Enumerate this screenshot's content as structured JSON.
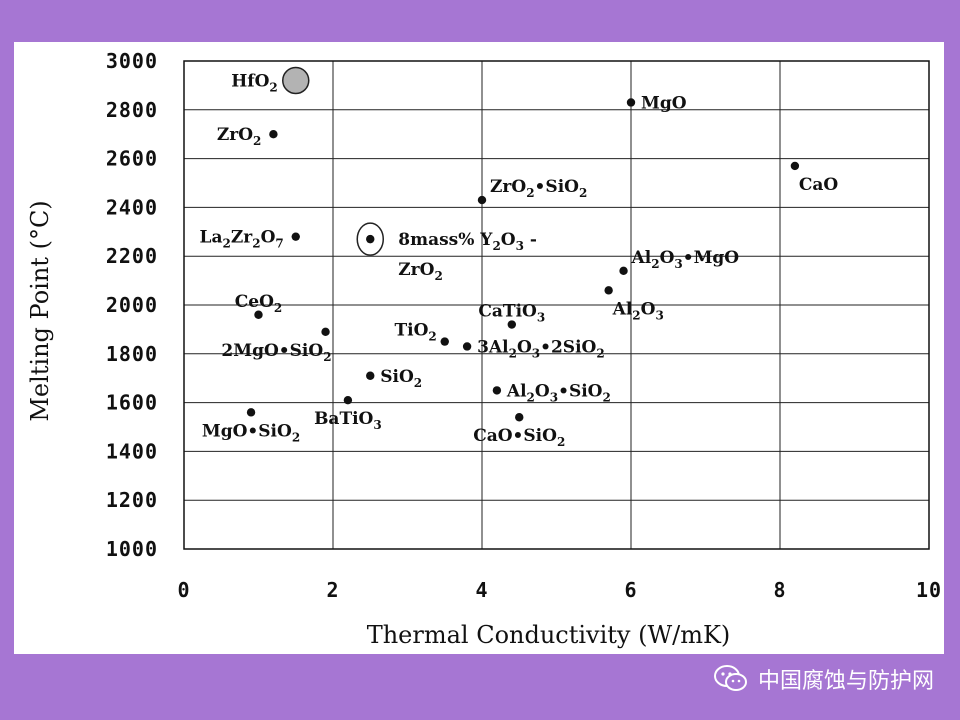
{
  "chart_data": {
    "type": "scatter",
    "xlabel": "Thermal Conductivity (W/mK)",
    "ylabel": "Melting Point (°C)",
    "xlim": [
      0,
      10
    ],
    "ylim": [
      1000,
      3000
    ],
    "xticks": [
      0,
      2,
      4,
      6,
      8,
      10
    ],
    "yticks": [
      1000,
      1200,
      1400,
      1600,
      1800,
      2000,
      2200,
      2400,
      2600,
      2800,
      3000
    ],
    "grid": true,
    "points": [
      {
        "label": [
          "HfO",
          {
            "sub": "2"
          }
        ],
        "x": 1.5,
        "y": 2920,
        "marker": "large-gray",
        "label_pos": "left"
      },
      {
        "label": [
          "ZrO",
          {
            "sub": "2"
          }
        ],
        "x": 1.2,
        "y": 2700,
        "label_pos": "left"
      },
      {
        "label": [
          "La",
          {
            "sub": "2"
          },
          "Zr",
          {
            "sub": "2"
          },
          "O",
          {
            "sub": "7"
          }
        ],
        "x": 1.5,
        "y": 2280,
        "label_pos": "left"
      },
      {
        "label": [
          "CeO",
          {
            "sub": "2"
          }
        ],
        "x": 1.0,
        "y": 1960,
        "label_pos": "above"
      },
      {
        "label": [
          "2MgO•SiO",
          {
            "sub": "2"
          }
        ],
        "x": 1.9,
        "y": 1890,
        "label_pos": "below-left"
      },
      {
        "label": [
          "MgO•SiO",
          {
            "sub": "2"
          }
        ],
        "x": 0.9,
        "y": 1560,
        "label_pos": "below"
      },
      {
        "label": [
          "8mass% Y",
          {
            "sub": "2"
          },
          "O",
          {
            "sub": "3"
          },
          " -"
        ],
        "label2": [
          "ZrO",
          {
            "sub": "2"
          }
        ],
        "x": 2.5,
        "y": 2270,
        "marker": "circled",
        "label_pos": "right"
      },
      {
        "label": [
          "SiO",
          {
            "sub": "2"
          }
        ],
        "x": 2.5,
        "y": 1710,
        "label_pos": "right"
      },
      {
        "label": [
          "BaTiO",
          {
            "sub": "3"
          }
        ],
        "x": 2.2,
        "y": 1610,
        "label_pos": "below"
      },
      {
        "label": [
          "TiO",
          {
            "sub": "2"
          }
        ],
        "x": 3.5,
        "y": 1850,
        "label_pos": "above-left"
      },
      {
        "label": [
          "3Al",
          {
            "sub": "2"
          },
          "O",
          {
            "sub": "3"
          },
          "•2SiO",
          {
            "sub": "2"
          }
        ],
        "x": 3.8,
        "y": 1830,
        "label_pos": "right"
      },
      {
        "label": [
          "ZrO",
          {
            "sub": "2"
          },
          "•SiO",
          {
            "sub": "2"
          }
        ],
        "x": 4.0,
        "y": 2430,
        "label_pos": "above-right"
      },
      {
        "label": [
          "CaTiO",
          {
            "sub": "3"
          }
        ],
        "x": 4.4,
        "y": 1920,
        "label_pos": "above"
      },
      {
        "label": [
          "Al",
          {
            "sub": "2"
          },
          "O",
          {
            "sub": "3"
          },
          "•SiO",
          {
            "sub": "2"
          }
        ],
        "x": 4.2,
        "y": 1650,
        "label_pos": "right"
      },
      {
        "label": [
          "CaO•SiO",
          {
            "sub": "2"
          }
        ],
        "x": 4.5,
        "y": 1540,
        "label_pos": "below"
      },
      {
        "label": [
          "MgO"
        ],
        "x": 6.0,
        "y": 2830,
        "label_pos": "right"
      },
      {
        "label": [
          "Al",
          {
            "sub": "2"
          },
          "O",
          {
            "sub": "3"
          },
          "•MgO"
        ],
        "x": 5.9,
        "y": 2140,
        "label_pos": "above-right"
      },
      {
        "label": [
          "Al",
          {
            "sub": "2"
          },
          "O",
          {
            "sub": "3"
          }
        ],
        "x": 5.7,
        "y": 2060,
        "label_pos": "below-right"
      },
      {
        "label": [
          "CaO"
        ],
        "x": 8.2,
        "y": 2570,
        "label_pos": "below-right"
      }
    ]
  },
  "watermark": {
    "text": "中国腐蚀与防护网",
    "icon": "wechat-icon"
  }
}
